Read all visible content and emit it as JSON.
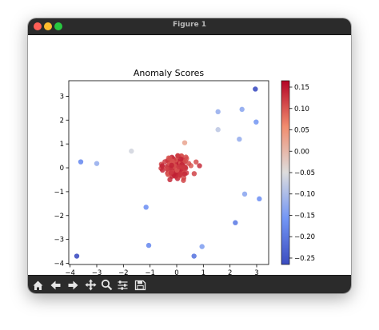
{
  "window": {
    "title": "Figure 1"
  },
  "toolbar": {
    "buttons": [
      {
        "icon": "home-icon"
      },
      {
        "icon": "back-arrow-icon"
      },
      {
        "icon": "forward-arrow-icon"
      },
      {
        "icon": "pan-icon"
      },
      {
        "icon": "zoom-icon"
      },
      {
        "icon": "configure-subplots-icon"
      },
      {
        "icon": "save-icon"
      }
    ]
  },
  "chart_data": {
    "type": "scatter",
    "title": "Anomaly Scores",
    "xlabel": "",
    "ylabel": "",
    "xlim": [
      -4.05,
      3.45
    ],
    "ylim": [
      -4.05,
      3.65
    ],
    "xticks": [
      -4,
      -3,
      -2,
      -1,
      0,
      1,
      2,
      3
    ],
    "yticks": [
      -4,
      -3,
      -2,
      -1,
      0,
      1,
      2,
      3
    ],
    "grid": false,
    "colormap": "coolwarm",
    "colorbar": {
      "range": [
        -0.265,
        0.165
      ],
      "ticks": [
        0.15,
        0.1,
        0.05,
        0.0,
        -0.05,
        -0.1,
        -0.15,
        -0.2,
        -0.25
      ],
      "tick_labels": [
        "0.15",
        "0.10",
        "0.05",
        "0.00",
        "−0.05",
        "−0.10",
        "−0.15",
        "−0.20",
        "−0.25"
      ]
    },
    "outliers": [
      {
        "x": 2.95,
        "y": 3.3,
        "score": -0.26
      },
      {
        "x": 1.55,
        "y": 2.35,
        "score": -0.12
      },
      {
        "x": 2.45,
        "y": 2.45,
        "score": -0.13
      },
      {
        "x": 2.98,
        "y": 1.92,
        "score": -0.15
      },
      {
        "x": 1.55,
        "y": 1.6,
        "score": -0.08
      },
      {
        "x": 2.35,
        "y": 1.2,
        "score": -0.12
      },
      {
        "x": -1.7,
        "y": 0.7,
        "score": -0.06
      },
      {
        "x": -3.6,
        "y": 0.25,
        "score": -0.17
      },
      {
        "x": -3.0,
        "y": 0.18,
        "score": -0.12
      },
      {
        "x": 0.3,
        "y": 1.05,
        "score": 0.02
      },
      {
        "x": 2.55,
        "y": -1.1,
        "score": -0.13
      },
      {
        "x": 3.1,
        "y": -1.3,
        "score": -0.16
      },
      {
        "x": -1.15,
        "y": -1.65,
        "score": -0.16
      },
      {
        "x": 2.2,
        "y": -2.3,
        "score": -0.19
      },
      {
        "x": -1.05,
        "y": -3.25,
        "score": -0.17
      },
      {
        "x": 0.95,
        "y": -3.3,
        "score": -0.14
      },
      {
        "x": 0.65,
        "y": -3.7,
        "score": -0.2
      },
      {
        "x": -3.75,
        "y": -3.7,
        "score": -0.26
      }
    ],
    "inlier_cluster": {
      "count": 160,
      "center": [
        0,
        0
      ],
      "spread": 0.22,
      "score": 0.12
    }
  }
}
